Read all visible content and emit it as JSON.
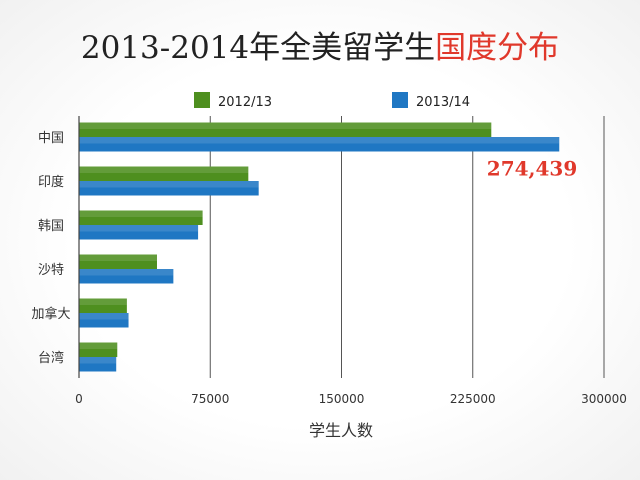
{
  "chart_data": {
    "type": "bar",
    "orientation": "horizontal",
    "title": "2013-2014年全美留学生国度分布",
    "title_main": "2013-2014年全美留学生",
    "title_highlight": "国度分布",
    "categories": [
      "中国",
      "印度",
      "韩国",
      "沙特",
      "加拿大",
      "台湾"
    ],
    "series": [
      {
        "name": "2012/13",
        "color": "#4e8f1f",
        "values": [
          235597,
          96754,
          70627,
          44566,
          27357,
          21867
        ]
      },
      {
        "name": "2013/14",
        "color": "#1f77c3",
        "values": [
          274439,
          102673,
          68047,
          53919,
          28304,
          21266
        ]
      }
    ],
    "xlabel": "学生人数",
    "xlim": [
      0,
      300000
    ],
    "xticks": [
      0,
      75000,
      150000,
      225000,
      300000
    ],
    "xtick_labels": [
      "0",
      "75000",
      "150000",
      "225000",
      "300000"
    ],
    "annotation": {
      "text": "274,439",
      "color": "#e0382b"
    },
    "grid": "vertical",
    "legend": "top-center"
  }
}
